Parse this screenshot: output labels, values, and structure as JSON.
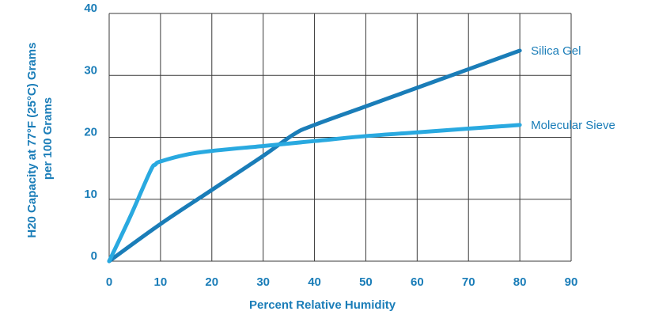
{
  "chart_data": {
    "type": "line",
    "title": "",
    "xlabel": "Percent Relative Humidity",
    "ylabel_lines": [
      "H20 Capacity at 77°F (25°C) Grams",
      "per 100 Grams"
    ],
    "xlim": [
      0,
      90
    ],
    "ylim": [
      0,
      40
    ],
    "x_ticks": [
      "0",
      "10",
      "20",
      "30",
      "40",
      "50",
      "60",
      "70",
      "80",
      "90"
    ],
    "y_ticks": [
      "0",
      "10",
      "20",
      "30",
      "40"
    ],
    "grid": true,
    "series": [
      {
        "name": "Silica Gel",
        "color": "#1a7db8",
        "points": [
          [
            0,
            0
          ],
          [
            10,
            6
          ],
          [
            20,
            11.5
          ],
          [
            30,
            17
          ],
          [
            36,
            20.5
          ],
          [
            40,
            22
          ],
          [
            50,
            25
          ],
          [
            60,
            28
          ],
          [
            70,
            31
          ],
          [
            80,
            34
          ]
        ]
      },
      {
        "name": "Molecular Sieve",
        "color": "#29a9e0",
        "points": [
          [
            0,
            0
          ],
          [
            4,
            7
          ],
          [
            8,
            14.5
          ],
          [
            9,
            15.6
          ],
          [
            10,
            16.1
          ],
          [
            15,
            17.2
          ],
          [
            20,
            17.8
          ],
          [
            30,
            18.6
          ],
          [
            40,
            19.4
          ],
          [
            50,
            20.2
          ],
          [
            60,
            20.8
          ],
          [
            70,
            21.4
          ],
          [
            80,
            22
          ]
        ]
      }
    ],
    "axis_color": "#1a7db8"
  }
}
